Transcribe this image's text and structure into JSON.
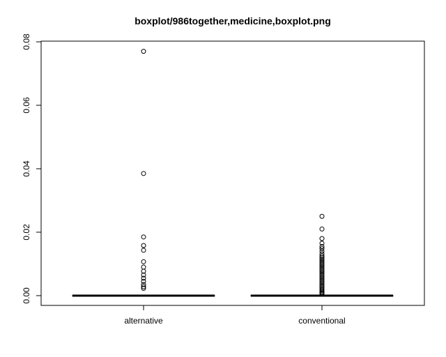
{
  "chart_data": {
    "type": "boxplot",
    "title": "boxplot/986together,medicine,boxplot.png",
    "xlabel": "",
    "ylabel": "",
    "ylim": [
      -0.003,
      0.08
    ],
    "y_ticks": [
      "0.00",
      "0.02",
      "0.04",
      "0.06",
      "0.08"
    ],
    "y_tick_values": [
      0,
      0.02,
      0.04,
      0.06,
      0.08
    ],
    "categories": [
      "alternative",
      "conventional"
    ],
    "grid": false,
    "boxes": [
      {
        "name": "alternative",
        "min": 0,
        "q1": 0,
        "median": 0,
        "q3": 0,
        "max": 0,
        "outliers": [
          0.077,
          0.0385,
          0.0185,
          0.0158,
          0.0143,
          0.0107,
          0.009,
          0.0077,
          0.0065,
          0.0055,
          0.0045,
          0.0035,
          0.0028,
          0.0023
        ]
      },
      {
        "name": "conventional",
        "min": 0,
        "q1": 0,
        "median": 0,
        "q3": 0,
        "max": 0,
        "outliers": [
          0.025,
          0.021,
          0.018,
          0.0165,
          0.0155,
          0.0148,
          0.014,
          0.0132,
          0.0125,
          0.012,
          0.0115,
          0.011,
          0.0105,
          0.01,
          0.0095,
          0.009,
          0.0085,
          0.008,
          0.0075,
          0.007,
          0.0065,
          0.006,
          0.0055,
          0.005,
          0.0045,
          0.004,
          0.0035,
          0.003,
          0.0025,
          0.002,
          0.0016,
          0.0012,
          0.0009,
          0.0006
        ]
      }
    ]
  }
}
